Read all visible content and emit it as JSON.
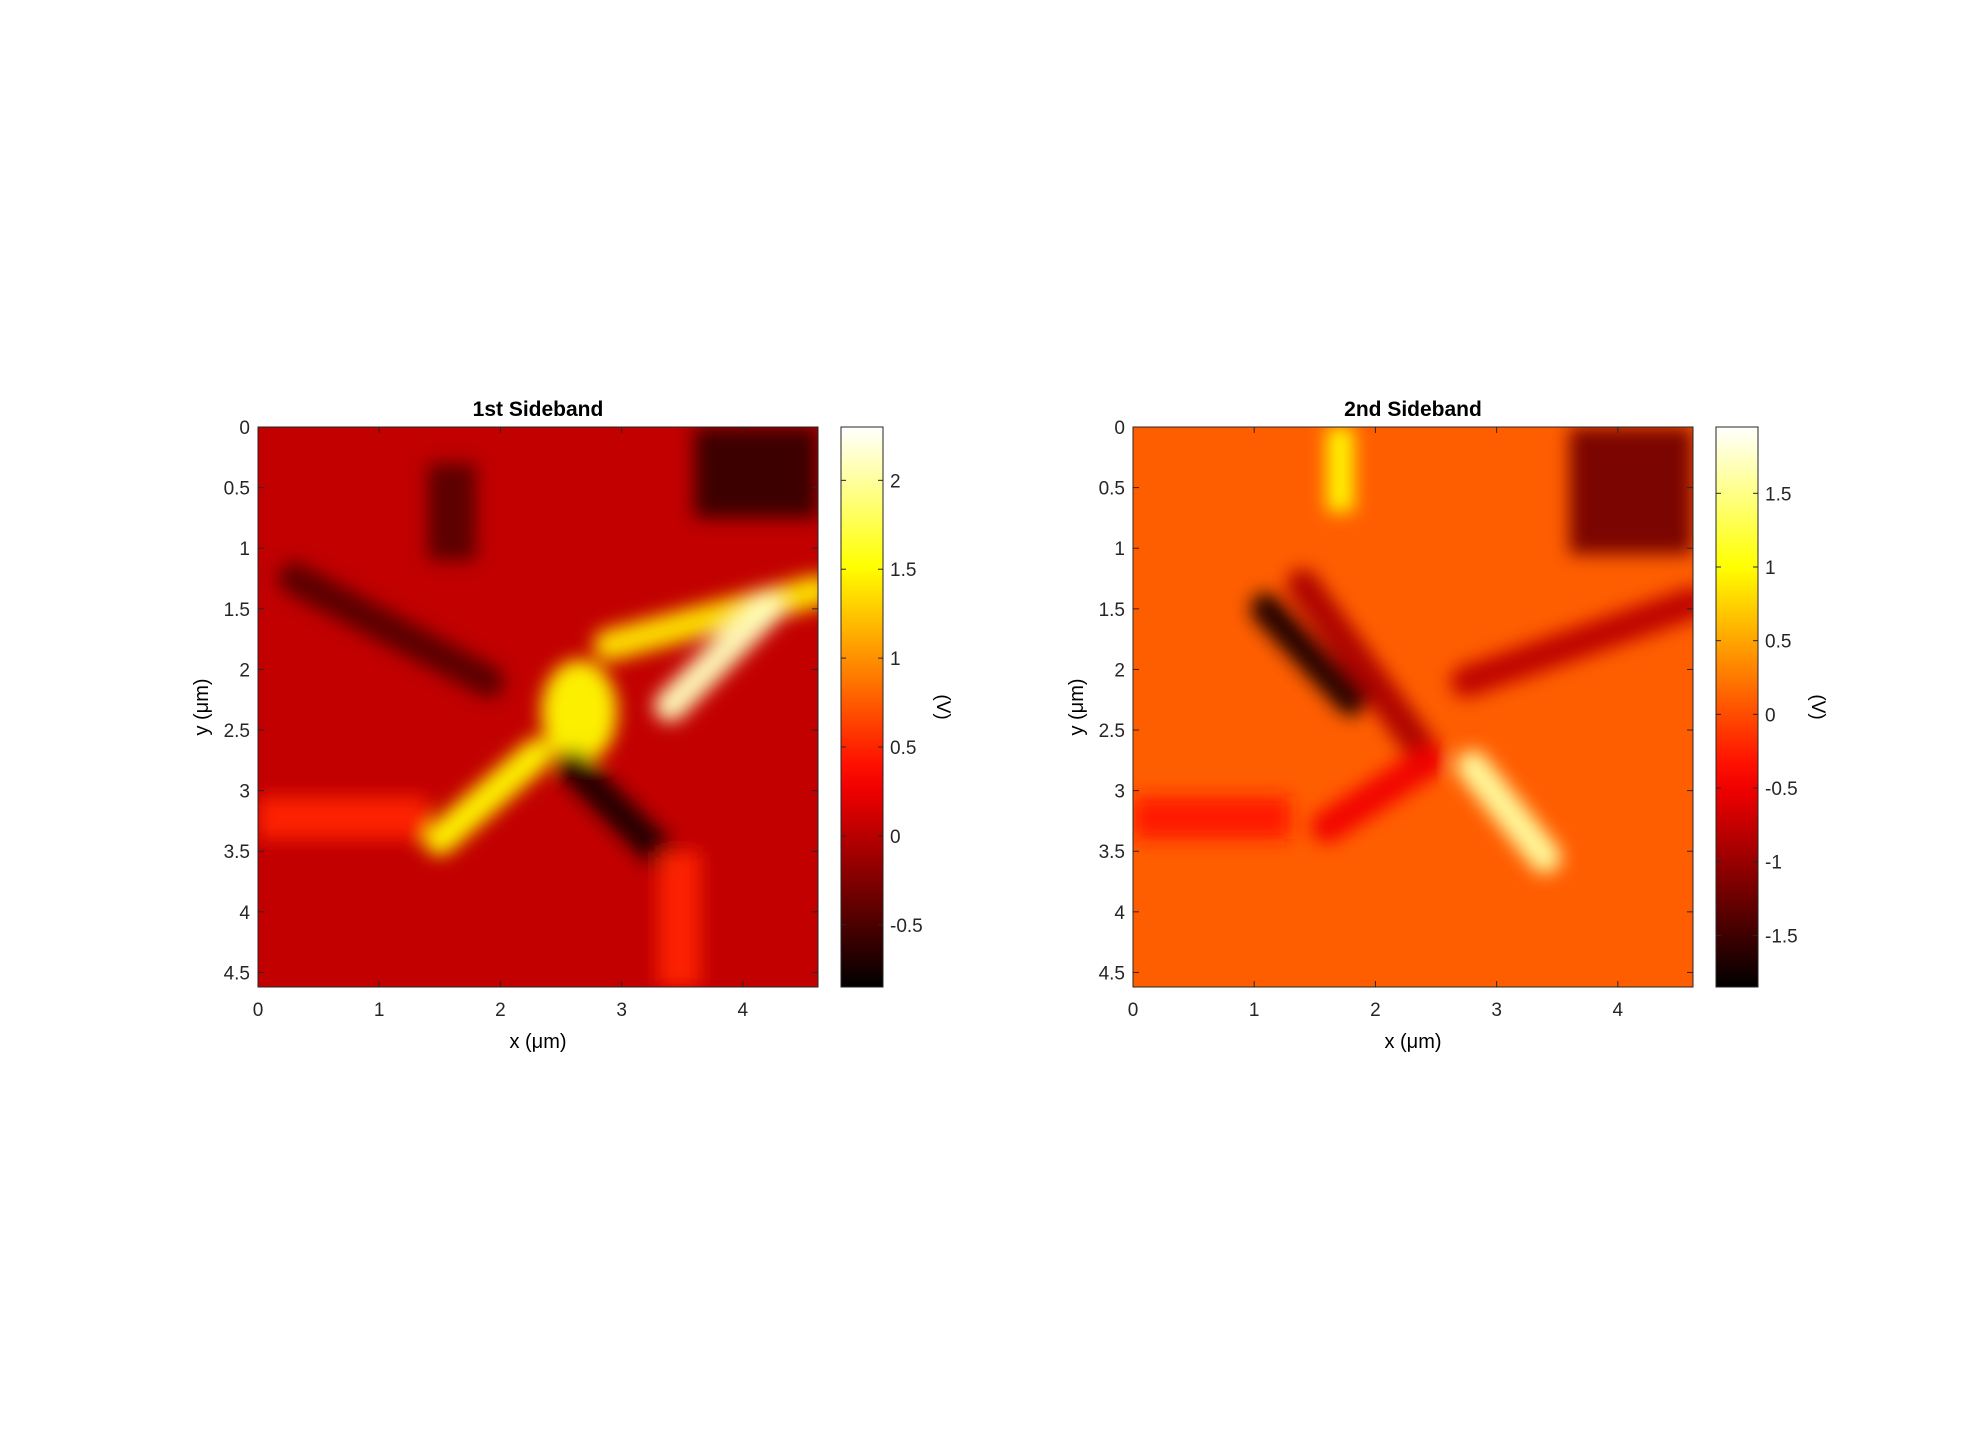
{
  "chart_data": [
    {
      "type": "heatmap",
      "title": "1st Sideband",
      "xlabel": "x (μm)",
      "ylabel": "y (μm)",
      "xlim": [
        0,
        4.62
      ],
      "ylim": [
        0,
        4.62
      ],
      "y_reversed": true,
      "xticks": [
        0,
        1,
        2,
        3,
        4
      ],
      "yticks": [
        0,
        0.5,
        1,
        1.5,
        2,
        2.5,
        3,
        3.5,
        4,
        4.5
      ],
      "xtick_labels": [
        "0",
        "1",
        "2",
        "3",
        "4"
      ],
      "ytick_labels": [
        "0",
        "0.5",
        "1",
        "1.5",
        "2",
        "2.5",
        "3",
        "3.5",
        "4",
        "4.5"
      ],
      "colormap": "hot",
      "colorbar": {
        "label": "(V)",
        "range": [
          -0.85,
          2.3
        ],
        "ticks": [
          -0.5,
          0,
          0.5,
          1,
          1.5,
          2
        ],
        "tick_labels": [
          "-0.5",
          "0",
          "0.5",
          "1",
          "1.5",
          "2"
        ]
      },
      "background_value": 0.05,
      "features": [
        {
          "name": "dark-top-right-block",
          "kind": "rect",
          "x": [
            3.6,
            4.62
          ],
          "y": [
            0,
            0.75
          ],
          "value": -0.6
        },
        {
          "name": "dark-upper-left-arm",
          "kind": "band",
          "from": [
            0.3,
            1.25
          ],
          "to": [
            1.9,
            2.1
          ],
          "value": -0.45
        },
        {
          "name": "dark-upper-stripe",
          "kind": "rect",
          "x": [
            1.4,
            1.8
          ],
          "y": [
            0.3,
            1.1
          ],
          "value": -0.45
        },
        {
          "name": "bright-upper-right-arm",
          "kind": "band",
          "from": [
            2.9,
            1.8
          ],
          "to": [
            4.62,
            1.35
          ],
          "value": 1.4
        },
        {
          "name": "bright-diagonal-streak",
          "kind": "band",
          "from": [
            3.4,
            2.3
          ],
          "to": [
            4.2,
            1.5
          ],
          "value": 2.1
        },
        {
          "name": "bright-center",
          "kind": "blob",
          "x": 2.65,
          "y": 2.35,
          "value": 1.5
        },
        {
          "name": "bright-lower-left-arm",
          "kind": "band",
          "from": [
            2.3,
            2.7
          ],
          "to": [
            1.5,
            3.4
          ],
          "value": 1.5
        },
        {
          "name": "warm-left-horizontal-strip",
          "kind": "rect",
          "x": [
            0,
            1.4
          ],
          "y": [
            3.05,
            3.4
          ],
          "value": 0.5
        },
        {
          "name": "dark-crack",
          "kind": "band",
          "from": [
            2.6,
            2.8
          ],
          "to": [
            3.35,
            3.55
          ],
          "value": -0.7
        },
        {
          "name": "warm-lower-right-column",
          "kind": "rect",
          "x": [
            3.3,
            3.65
          ],
          "y": [
            3.5,
            4.62
          ],
          "value": 0.5
        }
      ]
    },
    {
      "type": "heatmap",
      "title": "2nd Sideband",
      "xlabel": "x (μm)",
      "ylabel": "y (μm)",
      "xlim": [
        0,
        4.62
      ],
      "ylim": [
        0,
        4.62
      ],
      "y_reversed": true,
      "xticks": [
        0,
        1,
        2,
        3,
        4
      ],
      "yticks": [
        0,
        0.5,
        1,
        1.5,
        2,
        2.5,
        3,
        3.5,
        4,
        4.5
      ],
      "xtick_labels": [
        "0",
        "1",
        "2",
        "3",
        "4"
      ],
      "ytick_labels": [
        "0",
        "0.5",
        "1",
        "1.5",
        "2",
        "2.5",
        "3",
        "3.5",
        "4",
        "4.5"
      ],
      "colormap": "hot",
      "colorbar": {
        "label": "(V)",
        "range": [
          -1.85,
          1.95
        ],
        "ticks": [
          -1.5,
          -1,
          -0.5,
          0,
          0.5,
          1,
          1.5
        ],
        "tick_labels": [
          "-1.5",
          "-1",
          "-0.5",
          "0",
          "0.5",
          "1",
          "1.5"
        ]
      },
      "background_value": 0.1,
      "features": [
        {
          "name": "bright-top-stripe",
          "kind": "rect",
          "x": [
            1.6,
            1.82
          ],
          "y": [
            0,
            0.7
          ],
          "value": 1.0
        },
        {
          "name": "dark-top-right-block",
          "kind": "rect",
          "x": [
            3.6,
            4.62
          ],
          "y": [
            0,
            1.05
          ],
          "value": -1.2
        },
        {
          "name": "dark-upper-right-arm",
          "kind": "band",
          "from": [
            2.75,
            2.1
          ],
          "to": [
            4.62,
            1.45
          ],
          "value": -0.8
        },
        {
          "name": "dark-arc",
          "kind": "band",
          "from": [
            1.4,
            1.3
          ],
          "to": [
            2.45,
            2.75
          ],
          "value": -0.9
        },
        {
          "name": "dark-diagonal-streak",
          "kind": "band",
          "from": [
            1.1,
            1.5
          ],
          "to": [
            1.8,
            2.25
          ],
          "value": -1.7
        },
        {
          "name": "dark-arc-lower",
          "kind": "band",
          "from": [
            2.45,
            2.75
          ],
          "to": [
            1.6,
            3.3
          ],
          "value": -0.5
        },
        {
          "name": "bright-lower-center",
          "kind": "band",
          "from": [
            2.8,
            2.8
          ],
          "to": [
            3.4,
            3.55
          ],
          "value": 1.6
        },
        {
          "name": "left-horizontal-strip",
          "kind": "rect",
          "x": [
            0,
            1.3
          ],
          "y": [
            3.05,
            3.4
          ],
          "value": -0.3
        }
      ]
    }
  ]
}
